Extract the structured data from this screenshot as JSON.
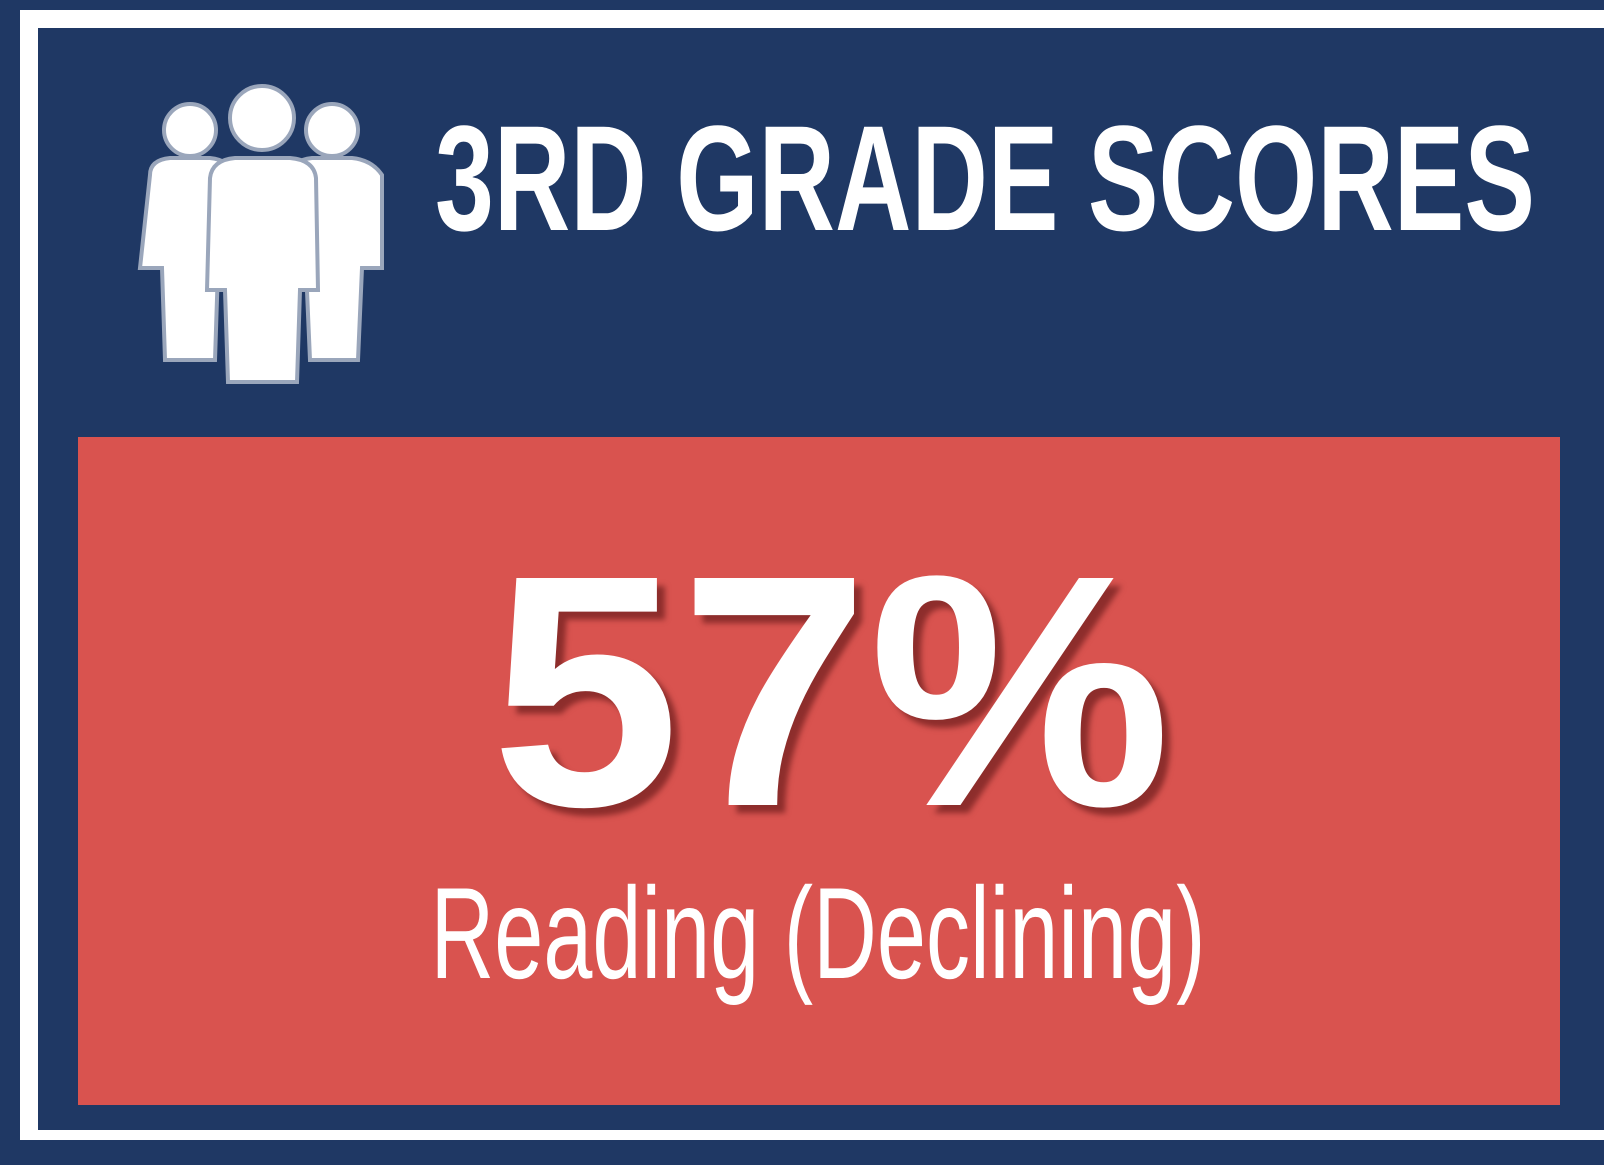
{
  "card": {
    "title": "3RD GRADE SCORES",
    "value": "57%",
    "caption": "Reading (Declining)"
  }
}
